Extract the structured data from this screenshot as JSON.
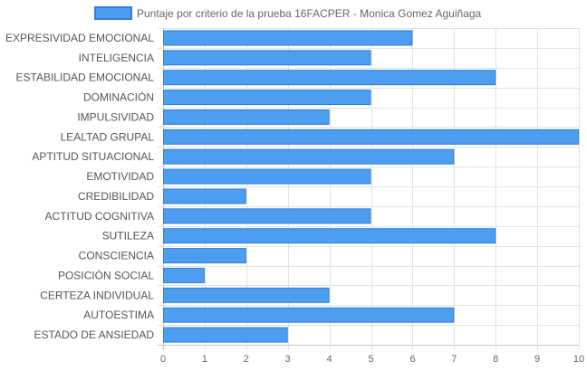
{
  "chart_data": {
    "type": "bar",
    "orientation": "horizontal",
    "title": "",
    "xlabel": "",
    "ylabel": "",
    "xlim": [
      0,
      10
    ],
    "x_ticks": [
      0,
      1,
      2,
      3,
      4,
      5,
      6,
      7,
      8,
      9,
      10
    ],
    "grid": true,
    "legend_position": "top",
    "bar_color": "#4d9ef0",
    "bar_border_color": "#2f7fd6",
    "categories": [
      "EXPRESIVIDAD EMOCIONAL",
      "INTELIGENCIA",
      "ESTABILIDAD EMOCIONAL",
      "DOMINACIÓN",
      "IMPULSIVIDAD",
      "LEALTAD GRUPAL",
      "APTITUD SITUACIONAL",
      "EMOTIVIDAD",
      "CREDIBILIDAD",
      "ACTITUD COGNITIVA",
      "SUTILEZA",
      "CONSCIENCIA",
      "POSICIÓN SOCIAL",
      "CERTEZA INDIVIDUAL",
      "AUTOESTIMA",
      "ESTADO DE ANSIEDAD"
    ],
    "series": [
      {
        "name": "Puntaje por criterio de la prueba 16FACPER - Monica Gomez Aguiñaga",
        "values": [
          6,
          5,
          8,
          5,
          4,
          10,
          7,
          5,
          2,
          5,
          8,
          2,
          1,
          4,
          7,
          3
        ]
      }
    ]
  }
}
